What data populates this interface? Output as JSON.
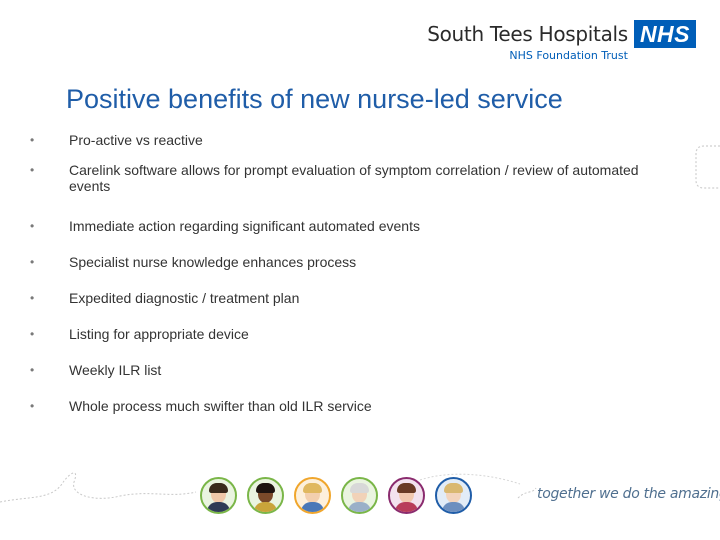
{
  "header": {
    "org_name": "South Tees Hospitals",
    "badge": "NHS",
    "org_subtitle": "NHS Foundation Trust"
  },
  "slide": {
    "title": "Positive benefits of new nurse-led service",
    "bullet_glyph": "•",
    "bullets": [
      "Pro-active vs reactive",
      "Carelink software allows for prompt evaluation of symptom correlation / review of automated events",
      "Immediate action regarding significant automated events",
      "Specialist nurse knowledge enhances process",
      "Expedited diagnostic / treatment plan",
      "Listing for appropriate device",
      "Weekly ILR list",
      "Whole process much swifter than old ILR service"
    ]
  },
  "footer": {
    "tagline": "together we do the amazing",
    "avatars": [
      {
        "name": "avatar-1",
        "ring": "#7ab648"
      },
      {
        "name": "avatar-2",
        "ring": "#7ab648"
      },
      {
        "name": "avatar-3",
        "ring": "#f0a62c"
      },
      {
        "name": "avatar-4",
        "ring": "#7ab648"
      },
      {
        "name": "avatar-5",
        "ring": "#8a2b6e"
      },
      {
        "name": "avatar-6",
        "ring": "#1f5da8"
      }
    ]
  },
  "colors": {
    "title": "#1f5da8",
    "nhs_blue": "#005eb8",
    "body_text": "#333333"
  }
}
